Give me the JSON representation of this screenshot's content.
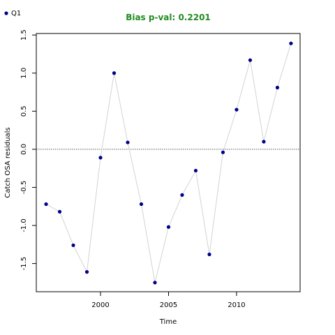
{
  "chart_data": {
    "type": "line",
    "title": "Bias p-val: 0.2201",
    "title_color": "#228b22",
    "xlabel": "Time",
    "ylabel": "Catch OSA residuals",
    "x": [
      1996,
      1997,
      1998,
      1999,
      2000,
      2001,
      2002,
      2003,
      2004,
      2005,
      2006,
      2007,
      2008,
      2009,
      2010,
      2011,
      2012,
      2013,
      2014
    ],
    "series": [
      {
        "name": "Q1",
        "color": "#00008b",
        "line_color": "#d3d3d3",
        "values": [
          -0.72,
          -0.82,
          -1.26,
          -1.61,
          -0.11,
          1.0,
          0.09,
          -0.72,
          -1.75,
          -1.02,
          -0.6,
          -0.28,
          -1.38,
          -0.04,
          0.52,
          1.17,
          0.1,
          0.81,
          1.39
        ]
      }
    ],
    "xlim": [
      1995.28,
      2014.67
    ],
    "ylim": [
      -1.87,
      1.52
    ],
    "xticks": [
      2000,
      2005,
      2010
    ],
    "yticks": [
      {
        "value": -1.5,
        "label": "-1.5"
      },
      {
        "value": -1.0,
        "label": "-1.0"
      },
      {
        "value": -0.5,
        "label": "-0.5"
      },
      {
        "value": 0.0,
        "label": "0.0"
      },
      {
        "value": 0.5,
        "label": "0.5"
      },
      {
        "value": 1.0,
        "label": "1.0"
      },
      {
        "value": 1.5,
        "label": "1.5"
      }
    ],
    "reference_line": 0,
    "legend": "top-left"
  }
}
